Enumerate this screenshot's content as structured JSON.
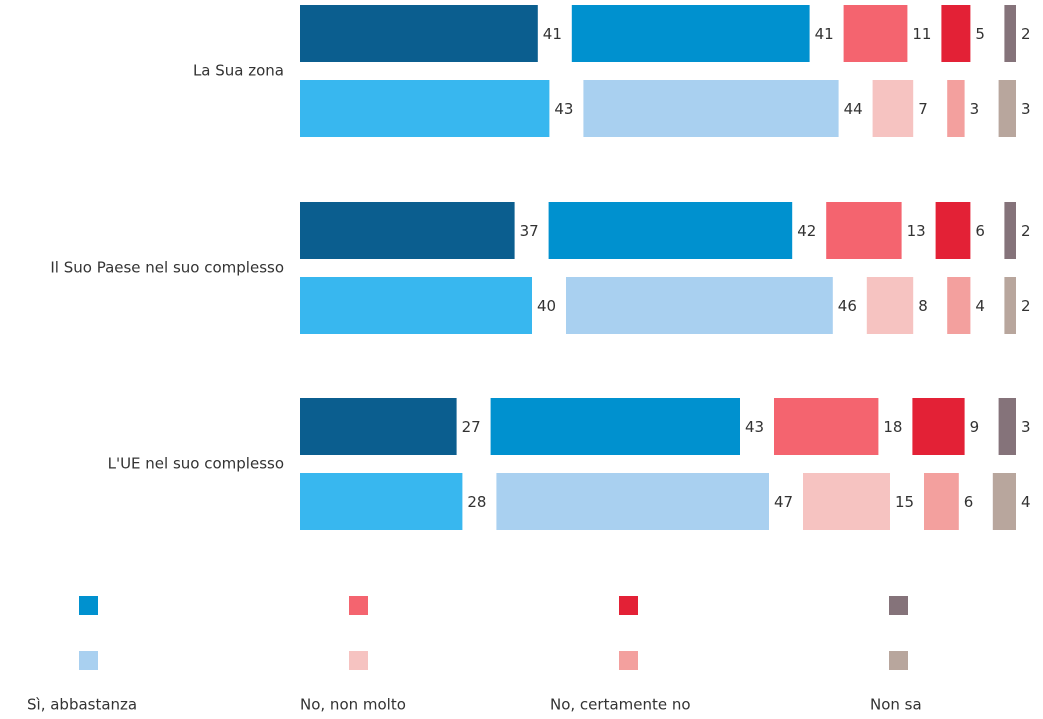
{
  "chart_data": {
    "type": "stacked-bar-pairs",
    "categories": [
      "La Sua zona",
      "Il Suo Paese nel suo complesso",
      "L'UE nel suo complesso"
    ],
    "series": [
      {
        "color": "#0b5e8f",
        "values": [
          41,
          37,
          27
        ]
      },
      {
        "name": "Sì, abbastanza",
        "color": "#0091cf",
        "values": [
          41,
          42,
          43
        ]
      },
      {
        "name": "No, non molto",
        "color": "#f4646f",
        "values": [
          11,
          13,
          18
        ]
      },
      {
        "name": "No, certamente no",
        "color": "#e32136",
        "values": [
          5,
          6,
          9
        ]
      },
      {
        "name": "Non sa",
        "color": "#85737a",
        "values": [
          2,
          2,
          3
        ]
      },
      {
        "color": "#38b7ef",
        "values": [
          43,
          40,
          28
        ]
      },
      {
        "color": "#a9d0f0",
        "values": [
          44,
          46,
          47
        ]
      },
      {
        "color": "#f6c3c1",
        "values": [
          7,
          8,
          15
        ]
      },
      {
        "color": "#f3a09e",
        "values": [
          3,
          4,
          6
        ]
      },
      {
        "color": "#b8a69d",
        "values": [
          3,
          2,
          4
        ]
      }
    ]
  }
}
